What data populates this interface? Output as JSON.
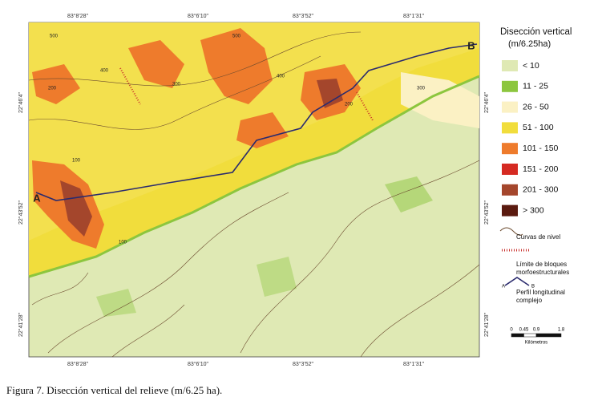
{
  "map": {
    "top_coords": [
      "83°8'28\"",
      "83°6'10\"",
      "83°3'52\"",
      "83°1'31\""
    ],
    "bottom_coords": [
      "83°8'28\"",
      "83°6'10\"",
      "83°3'52\"",
      "83°1'31\""
    ],
    "left_coords": [
      "22°46'4\"",
      "22°43'52\"",
      "22°41'28\""
    ],
    "right_coords": [
      "22°46'4\"",
      "22°43'52\"",
      "22°41'28\""
    ],
    "point_labels": [
      "A",
      "B"
    ],
    "contour_labels": [
      "500",
      "400",
      "300",
      "200",
      "100",
      "400",
      "300",
      "500",
      "100",
      "200"
    ]
  },
  "legend": {
    "title": "Disección vertical",
    "unit": "(m/6.25ha)",
    "classes": [
      {
        "label": "< 10",
        "color": "#dfe9b4"
      },
      {
        "label": "11 - 25",
        "color": "#8cc63e"
      },
      {
        "label": "26 - 50",
        "color": "#fbf1c4"
      },
      {
        "label": "51 - 100",
        "color": "#f1dd3c"
      },
      {
        "label": "101 - 150",
        "color": "#ee7b2c"
      },
      {
        "label": "151 - 200",
        "color": "#d52a22"
      },
      {
        "label": "201 - 300",
        "color": "#a4462c"
      },
      {
        "label": "> 300",
        "color": "#5a1a0f"
      }
    ],
    "lines": [
      {
        "lines": [
          "Curvas de nivel"
        ]
      },
      {
        "lines": [
          "Límite de bloques",
          "morfoestructurales"
        ]
      },
      {
        "lines": [
          "Perfil longitudinal",
          "complejo"
        ]
      }
    ],
    "profile_ends": [
      "A",
      "B"
    ]
  },
  "scale": {
    "ticks": [
      0,
      0.45,
      0.9,
      1.8
    ],
    "unit": "Kilómetros"
  },
  "caption": "Figura 7. Disección vertical del relieve (m/6.25 ha)."
}
